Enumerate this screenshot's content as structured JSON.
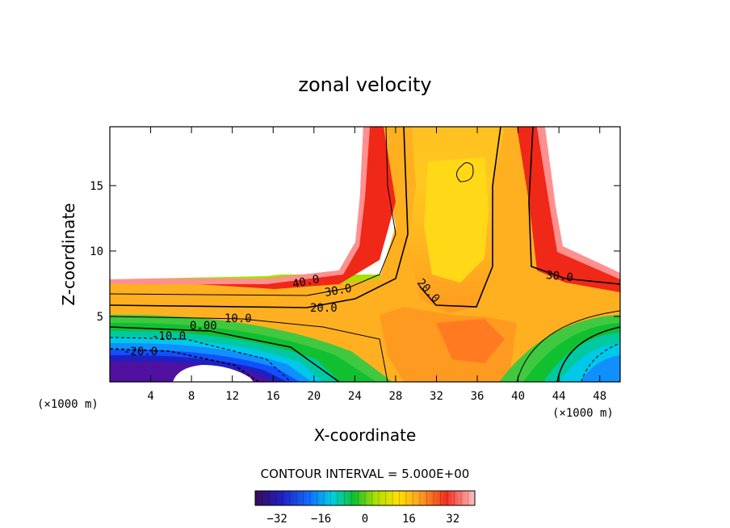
{
  "chart_data": {
    "type": "heatmap",
    "title": "zonal velocity",
    "xlabel": "X-coordinate",
    "ylabel": "Z-coordinate",
    "x_unit_left": "(×1000 m)",
    "x_unit_right": "(×1000 m)",
    "xlim": [
      0,
      50
    ],
    "ylim": [
      0,
      19.5
    ],
    "x_ticks": [
      4,
      8,
      12,
      16,
      20,
      24,
      28,
      32,
      36,
      40,
      44,
      48
    ],
    "y_ticks": [
      5,
      10,
      15
    ],
    "contour_interval_text": "CONTOUR INTERVAL = 5.000E+00",
    "contour_interval": 5.0,
    "contour_labels": [
      "40.0",
      "30.0",
      "20.0",
      "20.0",
      "30.0",
      "10.0",
      "0.00",
      "-10.0",
      "-20.0"
    ],
    "colorbar": {
      "ticks": [
        -32,
        -16,
        0,
        16,
        32
      ],
      "range": [
        -40,
        40
      ],
      "colormap": "rainbow (purple-blue-cyan-green-yellow-orange-red-pink)"
    },
    "undefined_regions": [
      "upper-left",
      "upper-right",
      "bottom-center"
    ]
  }
}
